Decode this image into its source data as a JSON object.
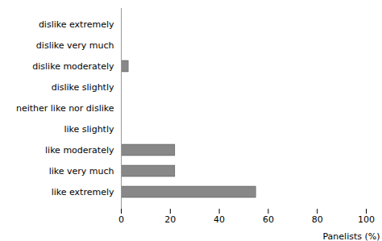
{
  "chart_data": {
    "type": "bar",
    "orientation": "horizontal",
    "categories": [
      "dislike extremely",
      "dislike very much",
      "dislike moderately",
      "dislike slightly",
      "neither like nor dislike",
      "like slightly",
      "like moderately",
      "like very much",
      "like extremely"
    ],
    "values": [
      0,
      0,
      3,
      0,
      0,
      0,
      22,
      22,
      55
    ],
    "color": "#888888",
    "xlim": [
      0,
      100
    ],
    "xticks": [
      0,
      20,
      40,
      60,
      80,
      100
    ],
    "xlabel": "Panelists (%)",
    "grid": false
  }
}
